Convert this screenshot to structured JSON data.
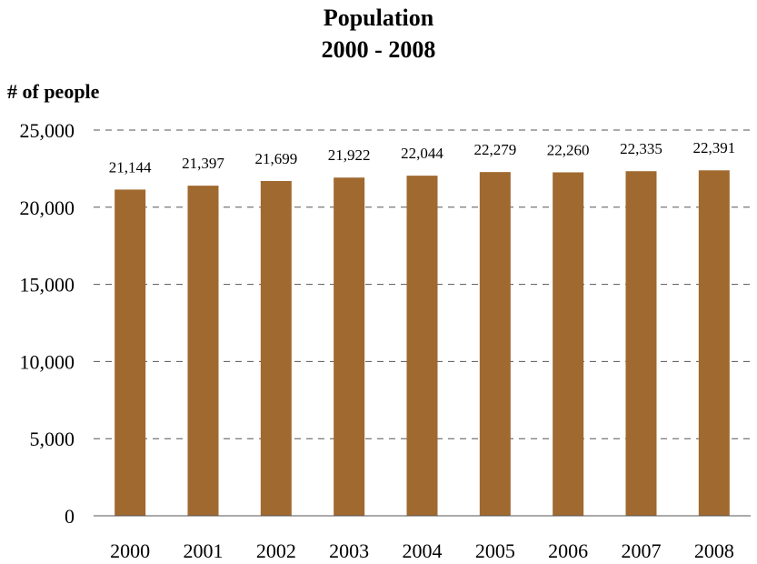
{
  "chart_data": {
    "type": "bar",
    "title": "Population",
    "subtitle": "2000 - 2008",
    "ylabel": "# of people",
    "xlabel": "",
    "categories": [
      "2000",
      "2001",
      "2002",
      "2003",
      "2004",
      "2005",
      "2006",
      "2007",
      "2008"
    ],
    "values": [
      21144,
      21397,
      21699,
      21922,
      22044,
      22279,
      22260,
      22335,
      22391
    ],
    "data_labels": [
      "21,144",
      "21,397",
      "21,699",
      "21,922",
      "22,044",
      "22,279",
      "22,260",
      "22,335",
      "22,391"
    ],
    "ylim": [
      0,
      25000
    ],
    "yticks": [
      0,
      5000,
      10000,
      15000,
      20000,
      25000
    ],
    "ytick_labels": [
      "0",
      "5,000",
      "10,000",
      "15,000",
      "20,000",
      "25,000"
    ],
    "grid": "dashed horizontal",
    "legend": "none",
    "bar_color": "#A0692F"
  }
}
